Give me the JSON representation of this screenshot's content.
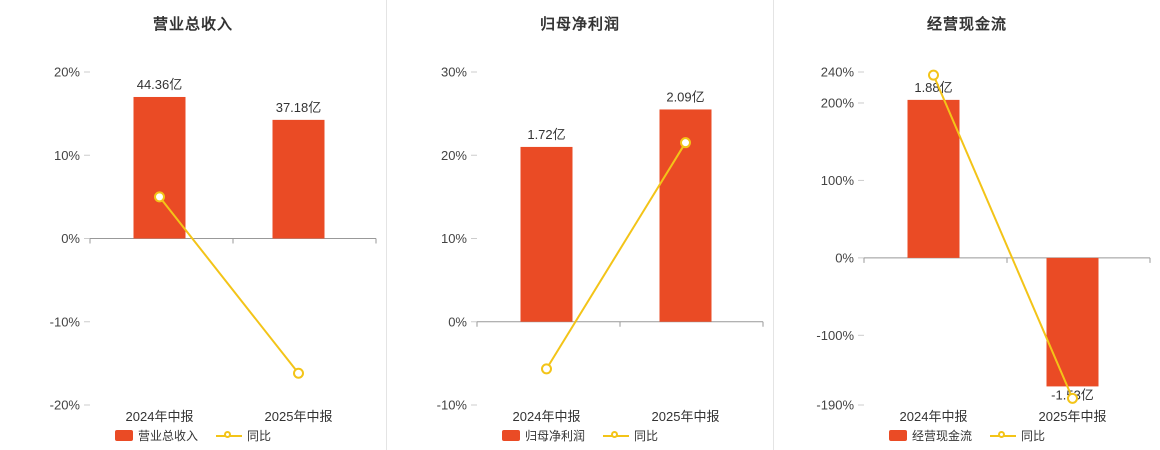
{
  "theme": {
    "bar_color": "#ea4b25",
    "line_color": "#f3c418",
    "marker_fill": "#ffffff",
    "title_color": "#333333",
    "axis_label_color": "#444444",
    "value_label_color": "#333333",
    "zero_line_color": "#999999",
    "tick_color": "#cccccc",
    "divider_color": "#e4e4e4",
    "background": "#ffffff"
  },
  "chart_data": [
    {
      "type": "bar+line",
      "title": "营业总收入",
      "categories": [
        "2024年中报",
        "2025年中报"
      ],
      "series": [
        {
          "name": "营业总收入",
          "type": "bar",
          "unit": "亿",
          "values": [
            44.36,
            37.18
          ],
          "labels": [
            "44.36亿",
            "37.18亿"
          ],
          "display_pct": [
            17.0,
            14.25
          ]
        },
        {
          "name": "同比",
          "type": "line",
          "unit": "%",
          "values": [
            5.0,
            -16.19
          ]
        }
      ],
      "y_axis": {
        "min": -20,
        "max": 20,
        "ticks": [
          {
            "value": 20,
            "label": "20%"
          },
          {
            "value": 10,
            "label": "10%"
          },
          {
            "value": 0,
            "label": "0%"
          },
          {
            "value": -10,
            "label": "-10%"
          },
          {
            "value": -20,
            "label": "-20%"
          }
        ]
      },
      "legend": [
        "营业总收入",
        "同比"
      ],
      "grid": false,
      "legend_position": "bottom"
    },
    {
      "type": "bar+line",
      "title": "归母净利润",
      "categories": [
        "2024年中报",
        "2025年中报"
      ],
      "series": [
        {
          "name": "归母净利润",
          "type": "bar",
          "unit": "亿",
          "values": [
            1.72,
            2.09
          ],
          "labels": [
            "1.72亿",
            "2.09亿"
          ],
          "display_pct": [
            21.0,
            25.5
          ]
        },
        {
          "name": "同比",
          "type": "line",
          "unit": "%",
          "values": [
            -5.66,
            21.51
          ]
        }
      ],
      "y_axis": {
        "min": -10,
        "max": 30,
        "ticks": [
          {
            "value": 30,
            "label": "30%"
          },
          {
            "value": 20,
            "label": "20%"
          },
          {
            "value": 10,
            "label": "10%"
          },
          {
            "value": 0,
            "label": "0%"
          },
          {
            "value": -10,
            "label": "-10%"
          }
        ]
      },
      "legend": [
        "归母净利润",
        "同比"
      ],
      "grid": false,
      "legend_position": "bottom"
    },
    {
      "type": "bar+line",
      "title": "经营现金流",
      "categories": [
        "2024年中报",
        "2025年中报"
      ],
      "series": [
        {
          "name": "经营现金流",
          "type": "bar",
          "unit": "亿",
          "values": [
            1.88,
            -1.53
          ],
          "labels": [
            "1.88亿",
            "-1.53亿"
          ],
          "display_pct": [
            204,
            -166
          ]
        },
        {
          "name": "同比",
          "type": "line",
          "unit": "%",
          "values": [
            236,
            -181.4
          ]
        }
      ],
      "y_axis": {
        "min": -190,
        "max": 240,
        "ticks": [
          {
            "value": 240,
            "label": "240%"
          },
          {
            "value": 200,
            "label": "200%"
          },
          {
            "value": 100,
            "label": "100%"
          },
          {
            "value": 0,
            "label": "0%"
          },
          {
            "value": -100,
            "label": "-100%"
          },
          {
            "value": -190,
            "label": "-190%"
          }
        ]
      },
      "legend": [
        "经营现金流",
        "同比"
      ],
      "grid": false,
      "legend_position": "bottom"
    }
  ]
}
